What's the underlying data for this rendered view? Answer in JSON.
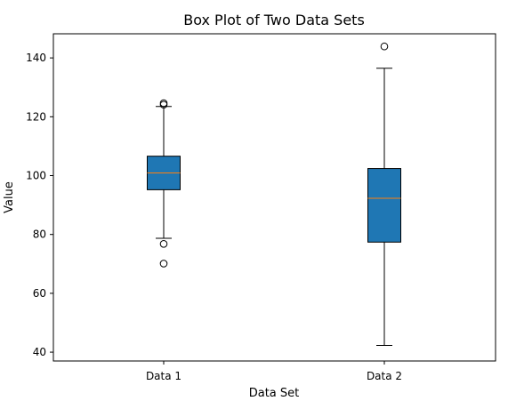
{
  "chart_data": {
    "type": "box",
    "title": "Box Plot of Two Data Sets",
    "xlabel": "Data Set",
    "ylabel": "Value",
    "ylim": [
      37.0,
      148.2
    ],
    "yticks": [
      40,
      60,
      80,
      100,
      120,
      140
    ],
    "categories": [
      "Data 1",
      "Data 2"
    ],
    "boxes": [
      {
        "category": "Data 1",
        "whisker_low": 78.7,
        "q1": 95.2,
        "median": 100.9,
        "q3": 106.6,
        "whisker_high": 123.5,
        "outliers": [
          70.1,
          76.8,
          124.1,
          124.6
        ]
      },
      {
        "category": "Data 2",
        "whisker_low": 42.3,
        "q1": 77.4,
        "median": 92.3,
        "q3": 102.4,
        "whisker_high": 136.5,
        "outliers": [
          143.9
        ]
      }
    ],
    "grid": false,
    "box_color": "#1f77b4",
    "median_color": "#ff7f0e",
    "edge_color": "#000000"
  }
}
